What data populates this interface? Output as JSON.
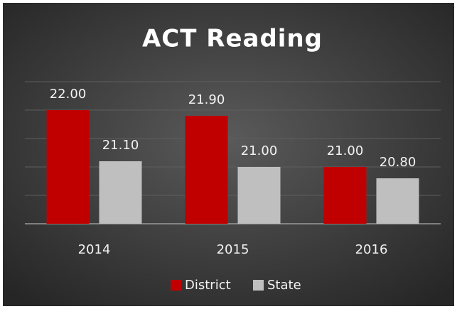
{
  "chart_data": {
    "type": "bar",
    "title": "ACT Reading",
    "categories": [
      "2014",
      "2015",
      "2016"
    ],
    "series": [
      {
        "name": "District",
        "color": "#c00000",
        "values": [
          22.0,
          21.9,
          21.0
        ],
        "value_labels": [
          "22.00",
          "21.90",
          "21.00"
        ]
      },
      {
        "name": "State",
        "color": "#bfbfbf",
        "values": [
          21.1,
          21.0,
          20.8
        ],
        "value_labels": [
          "21.10",
          "21.00",
          "20.80"
        ]
      }
    ],
    "ylim": [
      20,
      22.5
    ],
    "yticks": [
      20,
      20.5,
      21,
      21.5,
      22,
      22.5
    ],
    "grid": true,
    "legend": "bottom"
  }
}
